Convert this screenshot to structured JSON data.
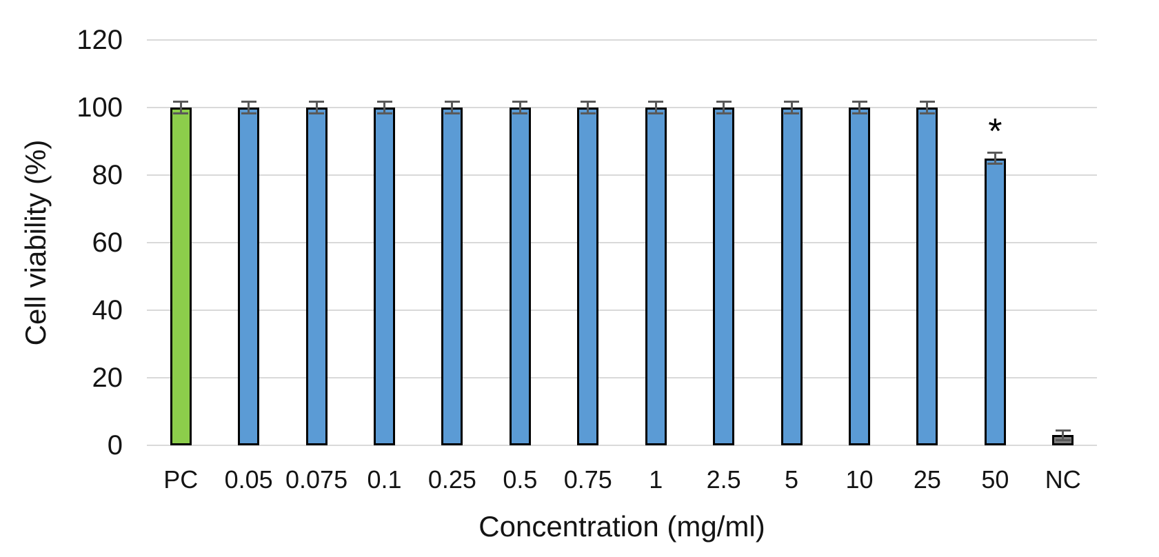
{
  "page": {
    "background": "#FFFFFF"
  },
  "colors": {
    "positive_control_bar": "#8CCD4B",
    "sample_bar": "#5B9BD5",
    "negative_control_bar": "#7F7F7F",
    "bar_border": "#000000",
    "error_bar": "#595959",
    "gridline": "#D9D9D9",
    "text": "#141414"
  },
  "chart_data": {
    "type": "bar",
    "title": "",
    "xlabel": "Concentration (mg/ml)",
    "ylabel": "Cell viability (%)",
    "ylim": [
      0,
      120
    ],
    "yticks": [
      0,
      20,
      40,
      60,
      80,
      100,
      120
    ],
    "grid": true,
    "legend": "none",
    "categories": [
      "PC",
      "0.05",
      "0.075",
      "0.1",
      "0.25",
      "0.5",
      "0.75",
      "1",
      "2.5",
      "5",
      "10",
      "25",
      "50",
      "NC"
    ],
    "series": [
      {
        "name": "Cell viability",
        "values": [
          100,
          100,
          100,
          100,
          100,
          100,
          100,
          100,
          100,
          100,
          100,
          100,
          85,
          3
        ],
        "errors": [
          1.8,
          1.8,
          1.8,
          1.8,
          1.8,
          1.8,
          1.8,
          1.8,
          1.8,
          1.8,
          1.8,
          1.8,
          1.8,
          1.5
        ],
        "bar_colors": [
          "#8CCD4B",
          "#5B9BD5",
          "#5B9BD5",
          "#5B9BD5",
          "#5B9BD5",
          "#5B9BD5",
          "#5B9BD5",
          "#5B9BD5",
          "#5B9BD5",
          "#5B9BD5",
          "#5B9BD5",
          "#5B9BD5",
          "#5B9BD5",
          "#7F7F7F"
        ]
      }
    ],
    "annotations": [
      {
        "category": "50",
        "text": "*"
      }
    ]
  }
}
